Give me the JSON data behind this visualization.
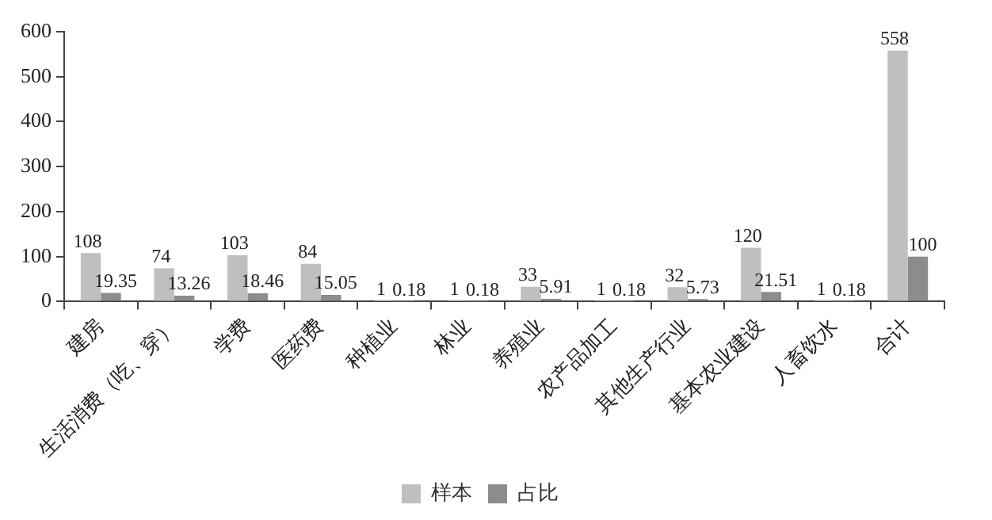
{
  "chart_data": {
    "type": "bar",
    "categories": [
      "建房",
      "生活消费（吃、穿）",
      "学费",
      "医药费",
      "种植业",
      "林业",
      "养殖业",
      "农产品加工",
      "其他生产行业",
      "基本农业建设",
      "人畜饮水",
      "合计"
    ],
    "series": [
      {
        "name": "样本",
        "color": "#bfbfbf",
        "values": [
          108,
          74,
          103,
          84,
          1,
          1,
          33,
          1,
          32,
          120,
          1,
          558
        ]
      },
      {
        "name": "占比",
        "color": "#8c8c8c",
        "values": [
          19.35,
          13.26,
          18.46,
          15.05,
          0.18,
          0.18,
          5.91,
          0.18,
          5.73,
          21.51,
          0.18,
          100
        ]
      }
    ],
    "ylim": [
      0,
      600
    ],
    "yticks": [
      0,
      100,
      200,
      300,
      400,
      500,
      600
    ],
    "grid": false,
    "legend": "bottom",
    "data_labels": true
  }
}
